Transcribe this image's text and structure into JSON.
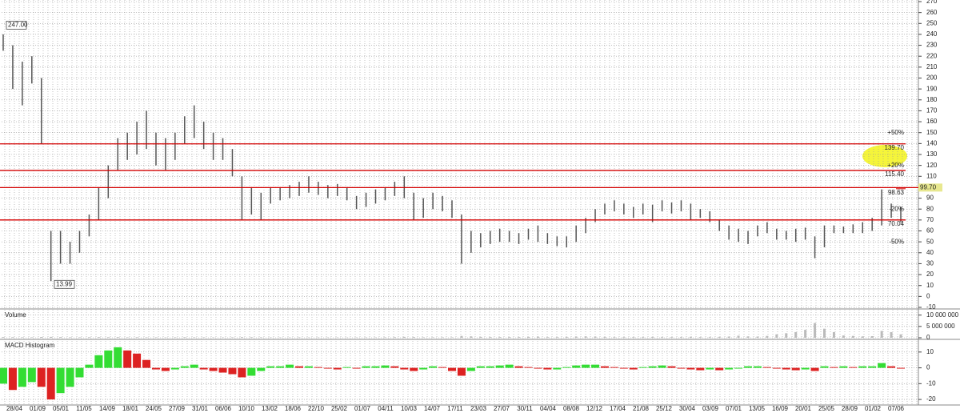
{
  "chart_data": [
    {
      "type": "range_bar",
      "color": "#555555",
      "series": [
        {
          "high": [
            240,
            230,
            215,
            220,
            200,
            60,
            60,
            50,
            60,
            75,
            100,
            120,
            145,
            150,
            160,
            170,
            150,
            145,
            150,
            165,
            175,
            160,
            150,
            145,
            135,
            110,
            100,
            95,
            100,
            100,
            102,
            105,
            110,
            105,
            102,
            103,
            100,
            92,
            95,
            98,
            100,
            105,
            110,
            95,
            90,
            95,
            92,
            88,
            75,
            60,
            58,
            60,
            62,
            60,
            58,
            62,
            65,
            58,
            55,
            55,
            65,
            72,
            80,
            85,
            88,
            85,
            82,
            85,
            84,
            88,
            86,
            88,
            85,
            80,
            78,
            70,
            65,
            62,
            60,
            65,
            68,
            62,
            60,
            62,
            63,
            55,
            65,
            65,
            64,
            66,
            68,
            72,
            98,
            85,
            82
          ],
          "low": [
            225,
            190,
            175,
            195,
            140,
            13.99,
            30,
            30,
            40,
            55,
            70,
            90,
            115,
            125,
            130,
            135,
            120,
            115,
            125,
            140,
            145,
            135,
            125,
            125,
            110,
            70,
            75,
            70,
            85,
            88,
            90,
            92,
            95,
            93,
            90,
            92,
            88,
            80,
            82,
            85,
            88,
            92,
            90,
            70,
            72,
            80,
            78,
            72,
            30,
            40,
            45,
            48,
            50,
            50,
            48,
            52,
            50,
            48,
            46,
            45,
            50,
            58,
            68,
            75,
            78,
            75,
            72,
            75,
            68,
            78,
            76,
            78,
            70,
            72,
            68,
            60,
            52,
            50,
            48,
            55,
            58,
            52,
            52,
            50,
            52,
            35,
            45,
            58,
            58,
            58,
            58,
            60,
            65,
            72,
            68
          ]
        }
      ],
      "ylim": [
        -10,
        270
      ],
      "yticks": [
        270,
        260,
        250,
        240,
        230,
        220,
        210,
        200,
        190,
        180,
        170,
        160,
        150,
        140,
        130,
        120,
        110,
        100,
        90,
        80,
        70,
        60,
        50,
        40,
        30,
        20,
        10,
        0,
        -10
      ],
      "grid": true,
      "levels": [
        {
          "value": 139.7,
          "label": "139.70"
        },
        {
          "value": 115.4,
          "label": "115.40"
        },
        {
          "value": 98.63,
          "label": "98.63"
        },
        {
          "value": 70.04,
          "label": "70.04"
        }
      ],
      "level_color": "#d40000",
      "last_price": {
        "value": 99.7,
        "label": "99.70"
      },
      "percent_labels": [
        {
          "value": 150,
          "label": "+50%",
          "color": "#2a9a2a"
        },
        {
          "value": 120,
          "label": "+20%",
          "color": "#2a9a2a"
        },
        {
          "value": 80,
          "label": "-20%",
          "color": "#c00000"
        },
        {
          "value": 50,
          "label": "-50%",
          "color": "#c00000"
        }
      ],
      "annotations": [
        {
          "value": 247,
          "label": "247.00"
        },
        {
          "value": 13.99,
          "label": "13.99"
        }
      ]
    },
    {
      "type": "bar",
      "title": "Volume",
      "color": "#bbbbbb",
      "values": [
        300000,
        250000,
        200000,
        200000,
        350000,
        400000,
        300000,
        200000,
        200000,
        250000,
        300000,
        250000,
        300000,
        200000,
        250000,
        200000,
        200000,
        150000,
        200000,
        250000,
        200000,
        200000,
        150000,
        150000,
        200000,
        300000,
        250000,
        200000,
        150000,
        150000,
        150000,
        200000,
        150000,
        150000,
        150000,
        150000,
        100000,
        150000,
        150000,
        150000,
        200000,
        250000,
        400000,
        300000,
        200000,
        200000,
        200000,
        200000,
        800000,
        600000,
        400000,
        300000,
        300000,
        300000,
        300000,
        400000,
        500000,
        300000,
        300000,
        400000,
        500000,
        600000,
        500000,
        400000,
        300000,
        300000,
        300000,
        300000,
        400000,
        300000,
        300000,
        300000,
        400000,
        300000,
        300000,
        400000,
        500000,
        900000,
        600000,
        500000,
        800000,
        1500000,
        2000000,
        2500000,
        3500000,
        6500000,
        4000000,
        2500000,
        1000000,
        800000,
        600000,
        700000,
        3000000,
        2500000,
        1500000
      ],
      "ylim": [
        0,
        12000000
      ],
      "yticks": [
        {
          "value": 10000000,
          "label": "10 000 000"
        },
        {
          "value": 5000000,
          "label": "5 000 000"
        },
        0
      ]
    },
    {
      "type": "histogram_macd",
      "title": "MACD Histogram",
      "up_color": "#33dd33",
      "down_color": "#dd2222",
      "values": [
        -10,
        -14,
        -12,
        -9,
        -12,
        -20,
        -16,
        -12,
        -6,
        2,
        8,
        11,
        13,
        11,
        9,
        5,
        -1,
        -2,
        -1,
        1,
        2,
        -1,
        -2,
        -3,
        -4,
        -6,
        -5,
        -2,
        1,
        1,
        2,
        1,
        1,
        0.5,
        -0.5,
        -1,
        0.5,
        -0.5,
        1,
        1,
        1.5,
        1,
        -1,
        -2,
        -1,
        1,
        0.5,
        -2,
        -5,
        -2,
        1,
        1,
        1.5,
        2,
        1,
        0.5,
        -0.5,
        -1,
        -1,
        0.5,
        1.5,
        2,
        2,
        1,
        0.5,
        -0.5,
        -1,
        0.5,
        1,
        1.5,
        1,
        -0.5,
        -1,
        -1.5,
        -1,
        -1.5,
        -1,
        -0.5,
        1,
        1,
        0.5,
        -0.5,
        -1,
        -1.5,
        -1,
        -2,
        1,
        0.5,
        1,
        0.5,
        1,
        1,
        3,
        1,
        -0.5
      ],
      "ylim": [
        -23,
        17
      ],
      "yticks": [
        10,
        0,
        -10,
        -20
      ],
      "xtick_labels": [
        "28/04",
        "01/09",
        "05/01",
        "11/05",
        "14/09",
        "18/01",
        "24/05",
        "27/09",
        "31/01",
        "06/06",
        "10/10",
        "13/02",
        "18/06",
        "22/10",
        "25/02",
        "01/07",
        "04/11",
        "10/03",
        "14/07",
        "17/11",
        "23/03",
        "27/07",
        "30/11",
        "04/04",
        "08/08",
        "12/12",
        "17/04",
        "21/08",
        "25/12",
        "30/04",
        "03/09",
        "07/01",
        "13/05",
        "16/09",
        "20/01",
        "25/05",
        "28/09",
        "01/02",
        "07/06"
      ]
    }
  ]
}
